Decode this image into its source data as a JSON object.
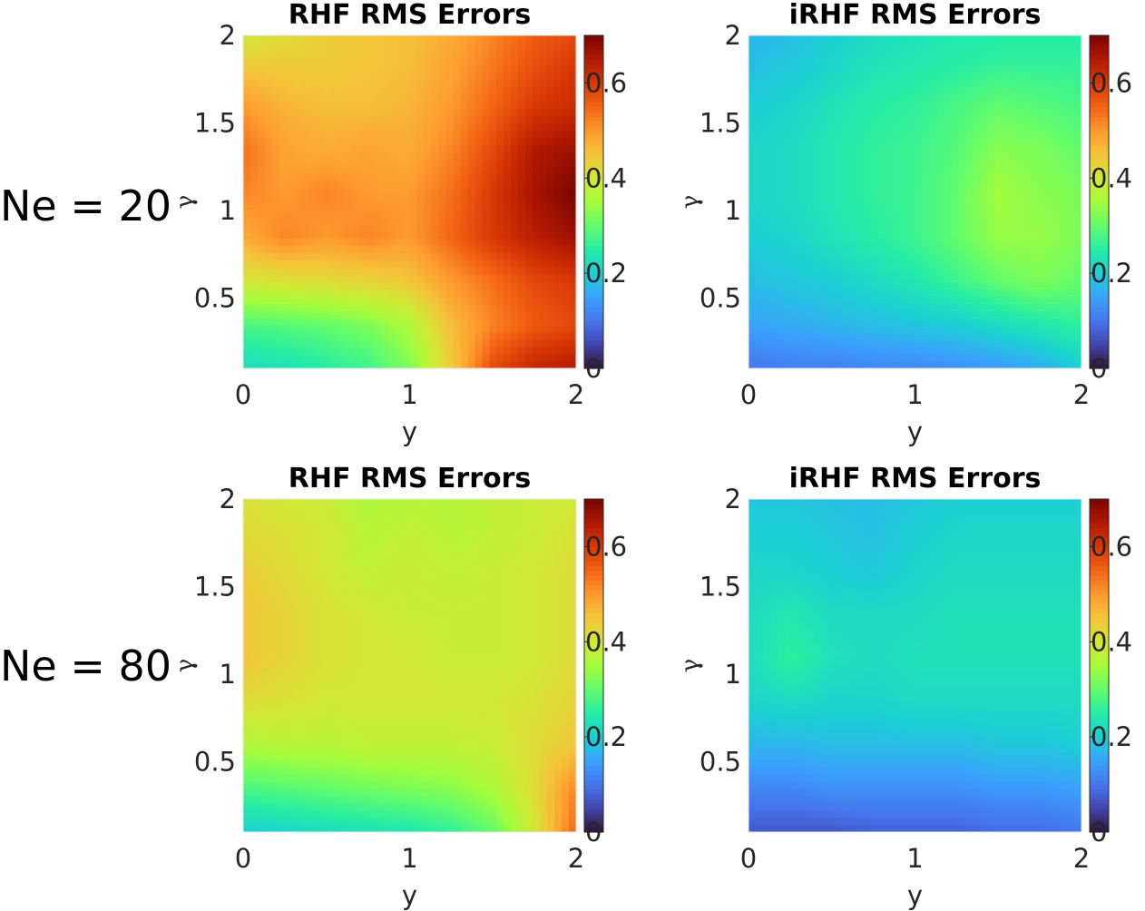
{
  "row_labels": [
    "Ne = 20",
    "Ne = 80"
  ],
  "colormap": [
    "#30123b",
    "#4145ab",
    "#4675ed",
    "#39a2fc",
    "#1bcfd4",
    "#24eca6",
    "#61fc6c",
    "#a4fc3b",
    "#d1e834",
    "#f3c63a",
    "#fe9b2d",
    "#f36315",
    "#d93806",
    "#b11901",
    "#7a0402"
  ],
  "chart_data": [
    {
      "type": "heatmap",
      "title": "RHF RMS Errors",
      "xlabel": "y",
      "ylabel": "γ",
      "xlim": [
        0,
        2
      ],
      "ylim": [
        0.1,
        2
      ],
      "x_ticks": [
        "0",
        "1",
        "2"
      ],
      "y_ticks": [
        "0.5",
        "1",
        "1.5",
        "2"
      ],
      "clim": [
        0,
        0.7
      ],
      "colorbar_ticks": [
        "0",
        "0.2",
        "0.4",
        "0.6"
      ],
      "x": [
        0,
        0.25,
        0.5,
        0.75,
        1,
        1.25,
        1.5,
        1.75,
        2
      ],
      "y": [
        0.1,
        0.35,
        0.6,
        0.85,
        1.1,
        1.35,
        1.6,
        1.85,
        2
      ],
      "z": [
        [
          0.22,
          0.23,
          0.25,
          0.27,
          0.32,
          0.44,
          0.58,
          0.63,
          0.65
        ],
        [
          0.28,
          0.29,
          0.3,
          0.32,
          0.36,
          0.46,
          0.52,
          0.56,
          0.58
        ],
        [
          0.4,
          0.41,
          0.42,
          0.43,
          0.45,
          0.5,
          0.54,
          0.58,
          0.6
        ],
        [
          0.48,
          0.52,
          0.5,
          0.52,
          0.5,
          0.55,
          0.6,
          0.64,
          0.67
        ],
        [
          0.52,
          0.5,
          0.52,
          0.5,
          0.5,
          0.54,
          0.6,
          0.66,
          0.7
        ],
        [
          0.54,
          0.49,
          0.48,
          0.49,
          0.48,
          0.52,
          0.58,
          0.65,
          0.67
        ],
        [
          0.5,
          0.47,
          0.46,
          0.46,
          0.47,
          0.5,
          0.55,
          0.6,
          0.62
        ],
        [
          0.44,
          0.44,
          0.44,
          0.45,
          0.46,
          0.49,
          0.53,
          0.57,
          0.6
        ],
        [
          0.4,
          0.42,
          0.44,
          0.45,
          0.46,
          0.48,
          0.52,
          0.56,
          0.58
        ]
      ]
    },
    {
      "type": "heatmap",
      "title": "iRHF RMS Errors",
      "xlabel": "y",
      "ylabel": "γ",
      "xlim": [
        0,
        2
      ],
      "ylim": [
        0.1,
        2
      ],
      "x_ticks": [
        "0",
        "1",
        "2"
      ],
      "y_ticks": [
        "0.5",
        "1",
        "1.5",
        "2"
      ],
      "clim": [
        0,
        0.7
      ],
      "colorbar_ticks": [
        "0",
        "0.2",
        "0.4",
        "0.6"
      ],
      "x": [
        0,
        0.25,
        0.5,
        0.75,
        1,
        1.25,
        1.5,
        1.75,
        2
      ],
      "y": [
        0.1,
        0.35,
        0.6,
        0.85,
        1.1,
        1.35,
        1.6,
        1.85,
        2
      ],
      "z": [
        [
          0.1,
          0.11,
          0.11,
          0.12,
          0.12,
          0.13,
          0.14,
          0.16,
          0.2
        ],
        [
          0.15,
          0.16,
          0.17,
          0.18,
          0.19,
          0.2,
          0.22,
          0.24,
          0.26
        ],
        [
          0.18,
          0.19,
          0.2,
          0.22,
          0.24,
          0.27,
          0.3,
          0.32,
          0.3
        ],
        [
          0.2,
          0.21,
          0.23,
          0.25,
          0.27,
          0.3,
          0.34,
          0.34,
          0.32
        ],
        [
          0.21,
          0.22,
          0.24,
          0.26,
          0.27,
          0.3,
          0.35,
          0.33,
          0.32
        ],
        [
          0.21,
          0.22,
          0.24,
          0.26,
          0.27,
          0.29,
          0.33,
          0.32,
          0.3
        ],
        [
          0.2,
          0.21,
          0.23,
          0.25,
          0.26,
          0.28,
          0.3,
          0.29,
          0.28
        ],
        [
          0.18,
          0.19,
          0.21,
          0.23,
          0.24,
          0.25,
          0.26,
          0.26,
          0.26
        ],
        [
          0.17,
          0.18,
          0.2,
          0.22,
          0.23,
          0.24,
          0.25,
          0.25,
          0.25
        ]
      ]
    },
    {
      "type": "heatmap",
      "title": "RHF RMS Errors",
      "xlabel": "y",
      "ylabel": "γ",
      "xlim": [
        0,
        2
      ],
      "ylim": [
        0.1,
        2
      ],
      "x_ticks": [
        "0",
        "1",
        "2"
      ],
      "y_ticks": [
        "0.5",
        "1",
        "1.5",
        "2"
      ],
      "clim": [
        0,
        0.7
      ],
      "colorbar_ticks": [
        "0",
        "0.2",
        "0.4",
        "0.6"
      ],
      "x": [
        0,
        0.25,
        0.5,
        0.75,
        1,
        1.25,
        1.5,
        1.75,
        2
      ],
      "y": [
        0.1,
        0.35,
        0.6,
        0.85,
        1.1,
        1.35,
        1.6,
        1.85,
        2
      ],
      "z": [
        [
          0.2,
          0.21,
          0.22,
          0.23,
          0.24,
          0.26,
          0.3,
          0.4,
          0.55
        ],
        [
          0.28,
          0.29,
          0.3,
          0.31,
          0.32,
          0.33,
          0.36,
          0.42,
          0.52
        ],
        [
          0.36,
          0.37,
          0.37,
          0.38,
          0.38,
          0.38,
          0.39,
          0.42,
          0.45
        ],
        [
          0.42,
          0.41,
          0.4,
          0.4,
          0.4,
          0.4,
          0.4,
          0.41,
          0.43
        ],
        [
          0.45,
          0.43,
          0.41,
          0.4,
          0.4,
          0.39,
          0.39,
          0.4,
          0.42
        ],
        [
          0.45,
          0.43,
          0.41,
          0.4,
          0.39,
          0.39,
          0.39,
          0.4,
          0.42
        ],
        [
          0.44,
          0.42,
          0.4,
          0.38,
          0.39,
          0.38,
          0.39,
          0.4,
          0.42
        ],
        [
          0.42,
          0.41,
          0.4,
          0.37,
          0.38,
          0.37,
          0.38,
          0.39,
          0.41
        ],
        [
          0.41,
          0.4,
          0.39,
          0.36,
          0.37,
          0.37,
          0.38,
          0.39,
          0.4
        ]
      ]
    },
    {
      "type": "heatmap",
      "title": "iRHF RMS Errors",
      "xlabel": "y",
      "ylabel": "γ",
      "xlim": [
        0,
        2
      ],
      "ylim": [
        0.1,
        2
      ],
      "x_ticks": [
        "0",
        "1",
        "2"
      ],
      "y_ticks": [
        "0.5",
        "1",
        "1.5",
        "2"
      ],
      "clim": [
        0,
        0.7
      ],
      "colorbar_ticks": [
        "0",
        "0.2",
        "0.4",
        "0.6"
      ],
      "x": [
        0,
        0.25,
        0.5,
        0.75,
        1,
        1.25,
        1.5,
        1.75,
        2
      ],
      "y": [
        0.1,
        0.35,
        0.6,
        0.85,
        1.1,
        1.35,
        1.6,
        1.85,
        2
      ],
      "z": [
        [
          0.07,
          0.07,
          0.07,
          0.08,
          0.08,
          0.08,
          0.09,
          0.09,
          0.1
        ],
        [
          0.12,
          0.12,
          0.13,
          0.13,
          0.13,
          0.13,
          0.14,
          0.14,
          0.15
        ],
        [
          0.17,
          0.17,
          0.18,
          0.18,
          0.18,
          0.18,
          0.19,
          0.19,
          0.2
        ],
        [
          0.21,
          0.22,
          0.21,
          0.21,
          0.22,
          0.22,
          0.22,
          0.22,
          0.22
        ],
        [
          0.22,
          0.26,
          0.23,
          0.22,
          0.23,
          0.23,
          0.23,
          0.23,
          0.23
        ],
        [
          0.22,
          0.24,
          0.22,
          0.22,
          0.22,
          0.23,
          0.23,
          0.23,
          0.23
        ],
        [
          0.21,
          0.21,
          0.2,
          0.19,
          0.21,
          0.22,
          0.22,
          0.22,
          0.22
        ],
        [
          0.2,
          0.2,
          0.19,
          0.18,
          0.2,
          0.21,
          0.21,
          0.21,
          0.21
        ],
        [
          0.19,
          0.19,
          0.18,
          0.18,
          0.19,
          0.2,
          0.2,
          0.2,
          0.2
        ]
      ]
    }
  ]
}
